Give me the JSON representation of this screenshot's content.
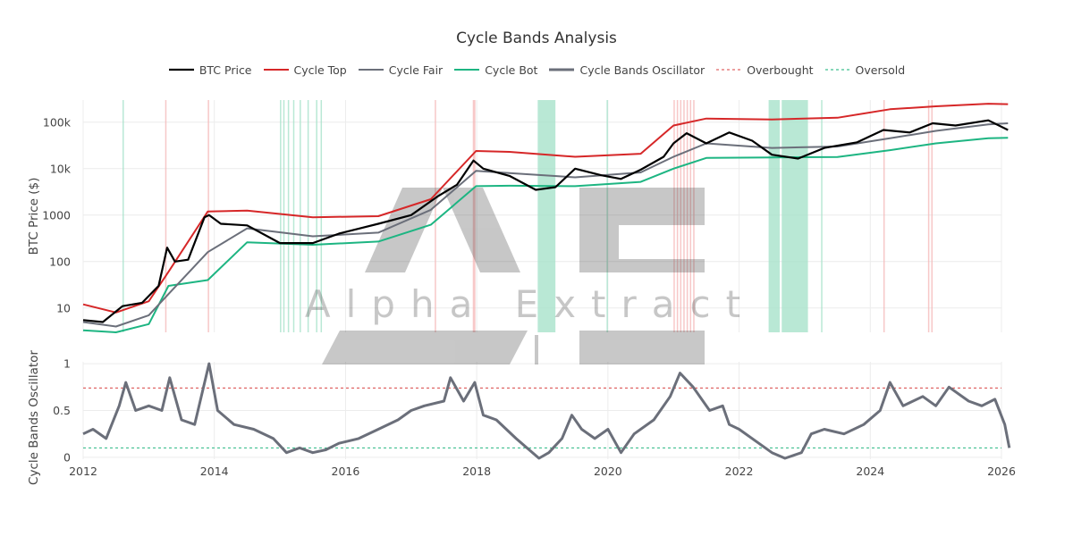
{
  "chart_data": {
    "type": "line",
    "title": "Cycle Bands Analysis",
    "watermark": {
      "text": "Alpha Extract",
      "logo": "AE"
    },
    "legend_placement": "top-center",
    "x_axis": {
      "range": [
        2012,
        2026
      ],
      "ticks": [
        "2012",
        "2014",
        "2016",
        "2018",
        "2020",
        "2022",
        "2024",
        "2026"
      ]
    },
    "price_panel": {
      "ylabel": "BTC Price ($)",
      "scale": "log",
      "ylim": [
        3,
        300000
      ],
      "yticks": [
        10,
        100,
        1000,
        10000,
        100000
      ],
      "ytick_labels": [
        "10",
        "100",
        "1000",
        "10k",
        "100k"
      ],
      "series": [
        {
          "name": "BTC Price",
          "color": "#000000",
          "width": 2.2,
          "x": [
            2012.0,
            2012.3,
            2012.6,
            2012.9,
            2013.15,
            2013.28,
            2013.4,
            2013.6,
            2013.85,
            2013.92,
            2014.1,
            2014.5,
            2015.0,
            2015.5,
            2015.9,
            2016.5,
            2017.0,
            2017.4,
            2017.7,
            2017.95,
            2018.1,
            2018.5,
            2018.9,
            2019.2,
            2019.5,
            2019.9,
            2020.2,
            2020.5,
            2020.85,
            2021.0,
            2021.2,
            2021.5,
            2021.85,
            2022.2,
            2022.5,
            2022.9,
            2023.3,
            2023.8,
            2024.2,
            2024.6,
            2024.95,
            2025.3,
            2025.8,
            2026.1
          ],
          "y": [
            5.5,
            5,
            11,
            13,
            30,
            200,
            100,
            110,
            900,
            1000,
            650,
            600,
            250,
            250,
            400,
            650,
            1000,
            2500,
            4500,
            15000,
            10000,
            7000,
            3500,
            4000,
            10000,
            7200,
            6000,
            9500,
            18000,
            35000,
            58000,
            35000,
            60000,
            40000,
            20000,
            16500,
            28000,
            37000,
            68000,
            60000,
            95000,
            85000,
            110000,
            68000
          ]
        },
        {
          "name": "Cycle Top",
          "color": "#d62728",
          "width": 2,
          "x": [
            2012.0,
            2012.5,
            2013.0,
            2013.3,
            2013.9,
            2014.5,
            2015.5,
            2016.5,
            2017.3,
            2017.99,
            2018.5,
            2019.5,
            2020.5,
            2021.0,
            2021.5,
            2022.5,
            2023.5,
            2024.3,
            2025.0,
            2025.8,
            2026.1
          ],
          "y": [
            12,
            8,
            14,
            60,
            1200,
            1250,
            900,
            950,
            2200,
            24000,
            23000,
            18000,
            21000,
            85000,
            120000,
            115000,
            125000,
            190000,
            220000,
            250000,
            245000
          ]
        },
        {
          "name": "Cycle Fair",
          "color": "#6b6f7a",
          "width": 2,
          "x": [
            2012.0,
            2012.5,
            2013.0,
            2013.3,
            2013.9,
            2014.5,
            2015.5,
            2016.5,
            2017.3,
            2017.99,
            2018.5,
            2019.5,
            2020.5,
            2021.0,
            2021.5,
            2022.5,
            2023.5,
            2024.3,
            2025.0,
            2025.8,
            2026.1
          ],
          "y": [
            5,
            4,
            7,
            20,
            160,
            520,
            350,
            420,
            1300,
            9000,
            8000,
            6500,
            8300,
            18000,
            35000,
            28000,
            30000,
            45000,
            65000,
            90000,
            95000
          ]
        },
        {
          "name": "Cycle Bot",
          "color": "#1db582",
          "width": 2,
          "x": [
            2012.0,
            2012.5,
            2013.0,
            2013.3,
            2013.9,
            2014.5,
            2015.5,
            2016.5,
            2017.3,
            2017.99,
            2018.5,
            2019.5,
            2020.5,
            2021.0,
            2021.5,
            2022.5,
            2023.5,
            2024.3,
            2025.0,
            2025.8,
            2026.1
          ],
          "y": [
            3.3,
            3,
            4.5,
            30,
            40,
            260,
            230,
            270,
            620,
            4200,
            4300,
            4200,
            5200,
            10000,
            17000,
            17500,
            17800,
            25000,
            35000,
            45000,
            46000
          ]
        }
      ]
    },
    "oscillator_panel": {
      "ylabel": "Cycle Bands Oscillator",
      "ylim": [
        -0.02,
        1.02
      ],
      "yticks": [
        0,
        0.5,
        1
      ],
      "ytick_labels": [
        "0",
        "0.5",
        "1"
      ],
      "series": [
        {
          "name": "Cycle Bands Oscillator",
          "color": "#6b6f7a",
          "width": 3,
          "x": [
            2012.0,
            2012.15,
            2012.35,
            2012.55,
            2012.65,
            2012.8,
            2013.0,
            2013.2,
            2013.32,
            2013.5,
            2013.7,
            2013.92,
            2014.05,
            2014.3,
            2014.6,
            2014.9,
            2015.1,
            2015.3,
            2015.5,
            2015.7,
            2015.9,
            2016.2,
            2016.5,
            2016.8,
            2017.0,
            2017.2,
            2017.5,
            2017.6,
            2017.8,
            2017.97,
            2018.1,
            2018.3,
            2018.6,
            2018.95,
            2019.1,
            2019.3,
            2019.45,
            2019.6,
            2019.8,
            2020.0,
            2020.2,
            2020.4,
            2020.7,
            2020.95,
            2021.1,
            2021.3,
            2021.45,
            2021.55,
            2021.75,
            2021.85,
            2022.0,
            2022.3,
            2022.5,
            2022.7,
            2022.95,
            2023.1,
            2023.3,
            2023.6,
            2023.9,
            2024.15,
            2024.3,
            2024.5,
            2024.8,
            2025.0,
            2025.2,
            2025.5,
            2025.7,
            2025.9,
            2026.05,
            2026.12
          ],
          "y": [
            0.25,
            0.3,
            0.2,
            0.55,
            0.8,
            0.5,
            0.55,
            0.5,
            0.85,
            0.4,
            0.35,
            1.0,
            0.5,
            0.35,
            0.3,
            0.2,
            0.05,
            0.1,
            0.05,
            0.08,
            0.15,
            0.2,
            0.3,
            0.4,
            0.5,
            0.55,
            0.6,
            0.85,
            0.6,
            0.8,
            0.45,
            0.4,
            0.2,
            -0.01,
            0.05,
            0.2,
            0.45,
            0.3,
            0.2,
            0.3,
            0.05,
            0.25,
            0.4,
            0.65,
            0.9,
            0.75,
            0.6,
            0.5,
            0.55,
            0.35,
            0.3,
            0.15,
            0.05,
            -0.01,
            0.05,
            0.25,
            0.3,
            0.25,
            0.35,
            0.5,
            0.8,
            0.55,
            0.65,
            0.55,
            0.75,
            0.6,
            0.55,
            0.62,
            0.35,
            0.1
          ]
        },
        {
          "name": "Overbought",
          "color": "#e06666",
          "dash": true,
          "level": 0.74
        },
        {
          "name": "Oversold",
          "color": "#3fbf8f",
          "dash": true,
          "level": 0.1
        }
      ]
    },
    "overbought_periods": [
      [
        2013.25,
        2013.27
      ],
      [
        2013.9,
        2013.92
      ],
      [
        2017.36,
        2017.38
      ],
      [
        2017.94,
        2017.98
      ],
      [
        2021.0,
        2021.02
      ],
      [
        2021.05,
        2021.07
      ],
      [
        2021.1,
        2021.12
      ],
      [
        2021.15,
        2021.17
      ],
      [
        2021.2,
        2021.22
      ],
      [
        2021.25,
        2021.27
      ],
      [
        2021.3,
        2021.32
      ],
      [
        2024.2,
        2024.22
      ],
      [
        2024.88,
        2024.9
      ],
      [
        2024.93,
        2024.95
      ]
    ],
    "oversold_periods": [
      [
        2012.6,
        2012.61
      ],
      [
        2015.0,
        2015.02
      ],
      [
        2015.05,
        2015.07
      ],
      [
        2015.12,
        2015.14
      ],
      [
        2015.2,
        2015.22
      ],
      [
        2015.3,
        2015.32
      ],
      [
        2015.42,
        2015.44
      ],
      [
        2015.55,
        2015.57
      ],
      [
        2015.62,
        2015.64
      ],
      [
        2018.93,
        2019.2
      ],
      [
        2019.98,
        2020.0
      ],
      [
        2022.45,
        2022.62
      ],
      [
        2022.65,
        2023.05
      ],
      [
        2023.25,
        2023.26
      ]
    ],
    "colors": {
      "overbought_band": "#f4b6b6",
      "oversold_band": "#a8e2cb",
      "grid": "#ececec",
      "axis_text": "#444444"
    }
  }
}
